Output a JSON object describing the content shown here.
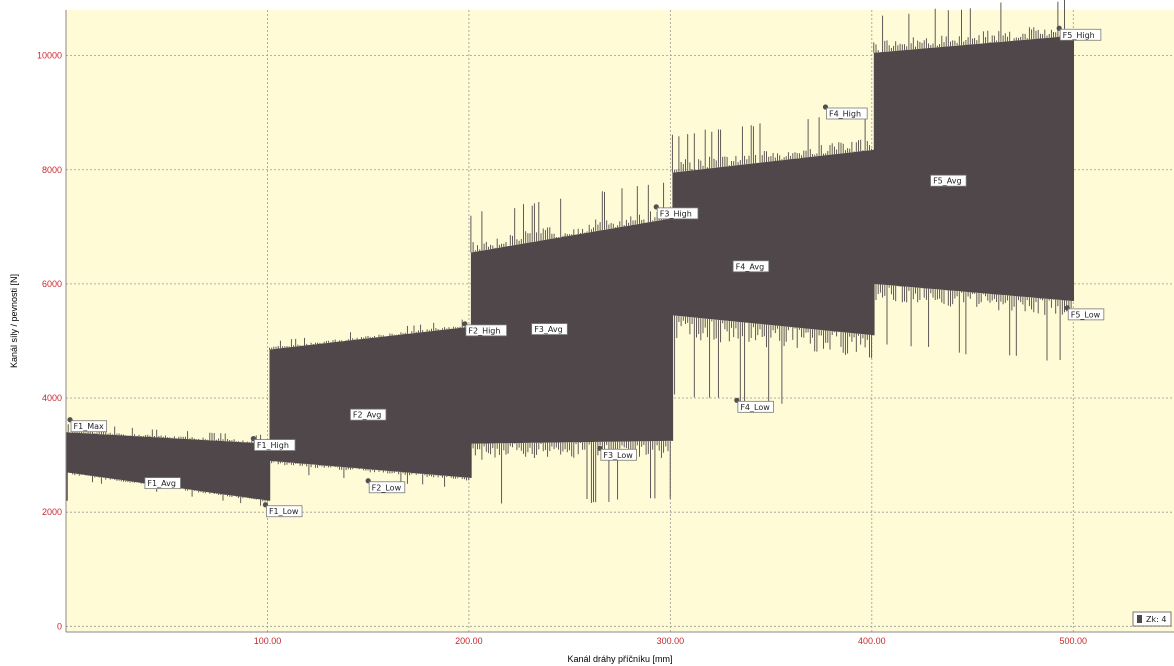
{
  "chart_data": {
    "type": "area",
    "xlabel": "Kanál dráhy příčníku  [mm]",
    "ylabel": "Kanál síly / pevnosti  [N]",
    "xlim": [
      0,
      550
    ],
    "ylim": [
      -100,
      10800
    ],
    "x_ticks": [
      "100.00",
      "200.00",
      "300.00",
      "400.00",
      "500.00"
    ],
    "y_ticks": [
      "0",
      "2000",
      "4000",
      "6000",
      "8000",
      "10000"
    ],
    "grid": true,
    "series": [
      {
        "segments": [
          {
            "x_start": 0,
            "x_end": 101,
            "low_start": 2700,
            "low_end": 2200,
            "high_start": 3400,
            "high_end": 3200
          },
          {
            "x_start": 101,
            "x_end": 201,
            "low_start": 2900,
            "low_end": 2600,
            "high_start": 4850,
            "high_end": 5250
          },
          {
            "x_start": 201,
            "x_end": 301,
            "low_start": 3200,
            "low_end": 3250,
            "high_start": 6550,
            "high_end": 7150
          },
          {
            "x_start": 301,
            "x_end": 401,
            "low_start": 5450,
            "low_end": 5100,
            "high_start": 7950,
            "high_end": 8350
          },
          {
            "x_start": 401,
            "x_end": 500,
            "low_start": 6000,
            "low_end": 5700,
            "high_start": 10050,
            "high_end": 10350
          }
        ]
      }
    ],
    "annotations": [
      {
        "label": "F1_Max",
        "x": 2,
        "y": 3620
      },
      {
        "label": "F1_High",
        "x": 93,
        "y": 3290
      },
      {
        "label": "F1_Avg",
        "x": 48,
        "y": 2500
      },
      {
        "label": "F1_Low",
        "x": 99,
        "y": 2130
      },
      {
        "label": "F2_High",
        "x": 198,
        "y": 5300
      },
      {
        "label": "F2_Avg",
        "x": 150,
        "y": 3700
      },
      {
        "label": "F2_Low",
        "x": 150,
        "y": 2550
      },
      {
        "label": "F3_High",
        "x": 293,
        "y": 7350
      },
      {
        "label": "F3_Avg",
        "x": 240,
        "y": 5200
      },
      {
        "label": "F3_Low",
        "x": 265,
        "y": 3120
      },
      {
        "label": "F4_High",
        "x": 377,
        "y": 9100
      },
      {
        "label": "F4_Avg",
        "x": 340,
        "y": 6300
      },
      {
        "label": "F4_Low",
        "x": 333,
        "y": 3960
      },
      {
        "label": "F5_High",
        "x": 493,
        "y": 10480
      },
      {
        "label": "F5_Avg",
        "x": 438,
        "y": 7800
      },
      {
        "label": "F5_Low",
        "x": 497,
        "y": 5580
      }
    ],
    "legend": {
      "label": "Zk: 4",
      "color": "#4f474a",
      "position": "bottom-right"
    },
    "colors": {
      "fill": "#4f474a",
      "background": "#fffbd6",
      "grid": "#9a9a9a",
      "axis_text": "#c8282d",
      "annotation_point": "#505050"
    }
  }
}
